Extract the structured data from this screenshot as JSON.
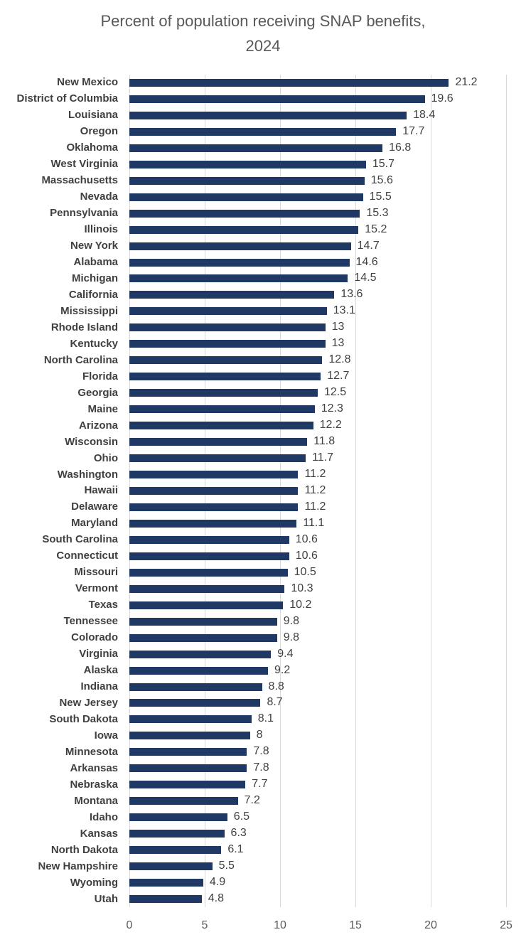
{
  "chart": {
    "title": "Percent of population receiving SNAP benefits, 2024"
  },
  "colors": {
    "bar": "#1f3864",
    "gridline": "#d9d9d9",
    "title_text": "#595959",
    "axis_text": "#595959",
    "label_text": "#404040",
    "background": "#ffffff"
  },
  "chart_data": {
    "type": "bar",
    "orientation": "horizontal",
    "title": "Percent of population receiving SNAP benefits, 2024",
    "xlabel": "",
    "ylabel": "",
    "xlim": [
      0,
      25
    ],
    "xticks": [
      0,
      5,
      10,
      15,
      20,
      25
    ],
    "grid": true,
    "legend": false,
    "value_labels_shown": true,
    "categories": [
      "New Mexico",
      "District of Columbia",
      "Louisiana",
      "Oregon",
      "Oklahoma",
      "West Virginia",
      "Massachusetts",
      "Nevada",
      "Pennsylvania",
      "Illinois",
      "New York",
      "Alabama",
      "Michigan",
      "California",
      "Mississippi",
      "Rhode Island",
      "Kentucky",
      "North Carolina",
      "Florida",
      "Georgia",
      "Maine",
      "Arizona",
      "Wisconsin",
      "Ohio",
      "Washington",
      "Hawaii",
      "Delaware",
      "Maryland",
      "South Carolina",
      "Connecticut",
      "Missouri",
      "Vermont",
      "Texas",
      "Tennessee",
      "Colorado",
      "Virginia",
      "Alaska",
      "Indiana",
      "New Jersey",
      "South Dakota",
      "Iowa",
      "Minnesota",
      "Arkansas",
      "Nebraska",
      "Montana",
      "Idaho",
      "Kansas",
      "North Dakota",
      "New Hampshire",
      "Wyoming",
      "Utah"
    ],
    "values": [
      21.2,
      19.6,
      18.4,
      17.7,
      16.8,
      15.7,
      15.6,
      15.5,
      15.3,
      15.2,
      14.7,
      14.6,
      14.5,
      13.6,
      13.1,
      13,
      13,
      12.8,
      12.7,
      12.5,
      12.3,
      12.2,
      11.8,
      11.7,
      11.2,
      11.2,
      11.2,
      11.1,
      10.6,
      10.6,
      10.5,
      10.3,
      10.2,
      9.8,
      9.8,
      9.4,
      9.2,
      8.8,
      8.7,
      8.1,
      8,
      7.8,
      7.8,
      7.7,
      7.2,
      6.5,
      6.3,
      6.1,
      5.5,
      4.9,
      4.8
    ]
  }
}
